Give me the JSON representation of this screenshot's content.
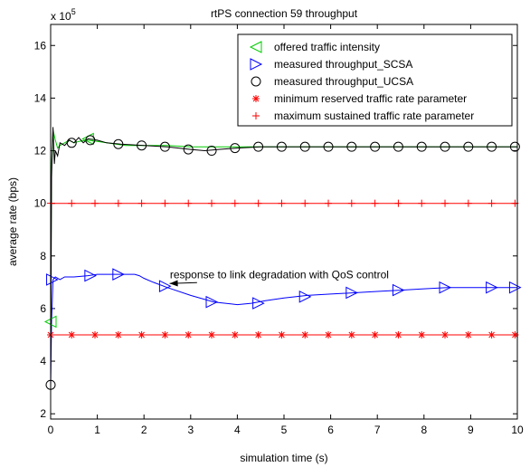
{
  "chart_data": {
    "type": "line",
    "title": "rtPS connection 59 throughput",
    "xlabel": "simulation time (s)",
    "ylabel": "average rate (bps)",
    "y_exponent_label": "x 10",
    "y_exponent_power": "5",
    "xlim": [
      0,
      10
    ],
    "ylim": [
      1.8,
      16.8
    ],
    "x_ticks": [
      0,
      1,
      2,
      3,
      4,
      5,
      6,
      7,
      8,
      9,
      10
    ],
    "x_tick_labels": [
      "0",
      "1",
      "2",
      "3",
      "4",
      "5",
      "6",
      "7",
      "8",
      "9",
      "10"
    ],
    "y_ticks": [
      2,
      4,
      6,
      8,
      10,
      12,
      14,
      16
    ],
    "y_tick_labels": [
      "2",
      "4",
      "6",
      "8",
      "10",
      "12",
      "14",
      "16"
    ],
    "grid": false,
    "legend_position": "top-right",
    "annotation": {
      "text": "response to link degradation with QoS control",
      "x": 2.4,
      "y": 6.95
    },
    "series": [
      {
        "name": "offered traffic intensity",
        "color": "#00cc00",
        "marker": "triangle-left",
        "x": [
          0,
          0.02,
          0.05,
          0.1,
          0.15,
          0.2,
          0.3,
          0.4,
          0.5,
          0.6,
          0.8,
          1.0,
          1.2,
          1.4,
          1.6,
          1.8,
          2.0,
          2.5,
          3.0,
          3.5,
          4.0,
          4.5,
          5.0,
          6.0,
          7.0,
          8.0,
          9.0,
          10.0
        ],
        "y": [
          5.5,
          11.5,
          12.8,
          12.4,
          12.1,
          12.2,
          12.3,
          12.4,
          12.3,
          12.35,
          12.4,
          12.35,
          12.3,
          12.25,
          12.2,
          12.2,
          12.2,
          12.2,
          12.15,
          12.15,
          12.15,
          12.15,
          12.15,
          12.15,
          12.15,
          12.15,
          12.15,
          12.15
        ],
        "marker_x": [
          0.0,
          0.8
        ],
        "marker_y": [
          5.5,
          12.45
        ]
      },
      {
        "name": "measured throughput_SCSA",
        "color": "#0000ff",
        "marker": "triangle-right",
        "x": [
          0,
          0.02,
          0.05,
          0.1,
          0.2,
          0.3,
          0.5,
          0.8,
          1.0,
          1.2,
          1.5,
          1.8,
          1.9,
          2.0,
          2.2,
          2.5,
          3.0,
          3.5,
          4.0,
          4.3,
          4.6,
          5.0,
          5.5,
          6.0,
          6.5,
          7.0,
          7.5,
          8.0,
          8.5,
          9.0,
          9.5,
          10.0
        ],
        "y": [
          3.0,
          5.5,
          7.1,
          7.2,
          7.1,
          7.2,
          7.2,
          7.25,
          7.3,
          7.3,
          7.3,
          7.3,
          7.25,
          7.15,
          7.0,
          6.8,
          6.5,
          6.25,
          6.15,
          6.2,
          6.3,
          6.4,
          6.5,
          6.55,
          6.6,
          6.65,
          6.7,
          6.75,
          6.8,
          6.8,
          6.8,
          6.8
        ],
        "marker_x": [
          0.03,
          0.85,
          1.45,
          2.45,
          3.45,
          4.45,
          5.45,
          6.45,
          7.45,
          8.45,
          9.45,
          9.95
        ],
        "marker_y": [
          7.1,
          7.25,
          7.3,
          6.85,
          6.25,
          6.2,
          6.45,
          6.6,
          6.7,
          6.8,
          6.8,
          6.8
        ]
      },
      {
        "name": "measured throughput_UCSA",
        "color": "#000000",
        "marker": "circle",
        "x": [
          0,
          0.02,
          0.05,
          0.08,
          0.1,
          0.15,
          0.2,
          0.3,
          0.4,
          0.5,
          0.6,
          0.7,
          0.8,
          1.0,
          1.2,
          1.5,
          2.0,
          2.5,
          3.0,
          3.3,
          3.6,
          4.0,
          4.5,
          5.0,
          6.0,
          7.0,
          8.0,
          9.0,
          10.0
        ],
        "y": [
          3.1,
          11.0,
          12.9,
          11.5,
          12.0,
          11.8,
          12.3,
          12.2,
          12.4,
          12.3,
          12.5,
          12.3,
          12.45,
          12.4,
          12.3,
          12.25,
          12.2,
          12.15,
          12.05,
          12.0,
          12.05,
          12.1,
          12.15,
          12.15,
          12.15,
          12.15,
          12.15,
          12.15,
          12.15
        ],
        "marker_x": [
          0.0,
          0.45,
          0.85,
          1.45,
          1.95,
          2.45,
          2.95,
          3.45,
          3.95,
          4.45,
          4.95,
          5.45,
          5.95,
          6.45,
          6.95,
          7.45,
          7.95,
          8.45,
          8.95,
          9.45,
          9.95
        ],
        "marker_y": [
          3.1,
          12.3,
          12.4,
          12.25,
          12.2,
          12.15,
          12.05,
          12.0,
          12.1,
          12.15,
          12.15,
          12.15,
          12.15,
          12.15,
          12.15,
          12.15,
          12.15,
          12.15,
          12.15,
          12.15,
          12.15
        ]
      },
      {
        "name": "minimum reserved traffic rate parameter",
        "color": "#ff0000",
        "marker": "asterisk",
        "x": [
          0,
          10
        ],
        "y": [
          5,
          5
        ],
        "marker_x": [
          0.0,
          0.45,
          0.95,
          1.45,
          1.95,
          2.45,
          2.95,
          3.45,
          3.95,
          4.45,
          4.95,
          5.45,
          5.95,
          6.45,
          6.95,
          7.45,
          7.95,
          8.45,
          8.95,
          9.45,
          9.95
        ],
        "marker_y": [
          5,
          5,
          5,
          5,
          5,
          5,
          5,
          5,
          5,
          5,
          5,
          5,
          5,
          5,
          5,
          5,
          5,
          5,
          5,
          5,
          5
        ]
      },
      {
        "name": "maximum sustained traffic rate parameter",
        "color": "#ff0000",
        "marker": "plus",
        "x": [
          0,
          10
        ],
        "y": [
          10,
          10
        ],
        "marker_x": [
          0.0,
          0.45,
          0.95,
          1.45,
          1.95,
          2.45,
          2.95,
          3.45,
          3.95,
          4.45,
          4.95,
          5.45,
          5.95,
          6.45,
          6.95,
          7.45,
          7.95,
          8.45,
          8.95,
          9.45,
          9.95
        ],
        "marker_y": [
          10,
          10,
          10,
          10,
          10,
          10,
          10,
          10,
          10,
          10,
          10,
          10,
          10,
          10,
          10,
          10,
          10,
          10,
          10,
          10,
          10
        ]
      }
    ]
  }
}
